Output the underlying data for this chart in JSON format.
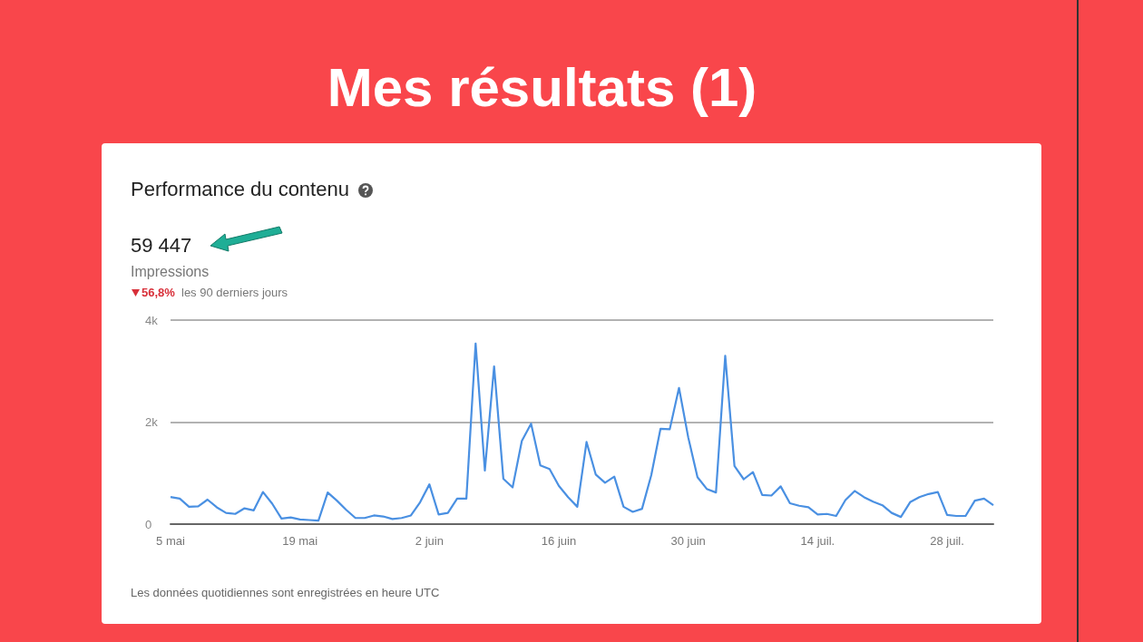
{
  "chart_data": {
    "type": "line",
    "title": "Mes résultats (1)",
    "subtitle": "Performance du contenu",
    "annotations": [
      "59 447",
      "Impressions",
      "56,8%",
      "les 90 derniers jours",
      "Les données quotidiennes sont enregistrées en heure UTC"
    ],
    "categories": [
      "5 mai",
      null,
      null,
      null,
      null,
      null,
      null,
      null,
      null,
      null,
      null,
      null,
      null,
      null,
      "19 mai",
      null,
      null,
      null,
      null,
      null,
      null,
      null,
      null,
      null,
      null,
      null,
      null,
      null,
      "2 juin",
      null,
      null,
      null,
      null,
      null,
      null,
      null,
      null,
      null,
      null,
      null,
      null,
      null,
      "16 juin",
      null,
      null,
      null,
      null,
      null,
      null,
      null,
      null,
      null,
      null,
      null,
      null,
      null,
      "30 juin",
      null,
      null,
      null,
      null,
      null,
      null,
      null,
      null,
      null,
      null,
      null,
      null,
      null,
      "14 juil.",
      null,
      null,
      null,
      null,
      null,
      null,
      null,
      null,
      null,
      null,
      null,
      null,
      null,
      "28 juil.",
      null,
      null,
      null,
      null,
      null
    ],
    "series": [
      {
        "color": "#4a90e2",
        "values": [
          530,
          500,
          340,
          350,
          480,
          330,
          220,
          200,
          310,
          270,
          630,
          400,
          110,
          130,
          90,
          80,
          70,
          620,
          460,
          280,
          120,
          120,
          170,
          150,
          100,
          120,
          170,
          430,
          780,
          190,
          220,
          500,
          500,
          3540,
          1050,
          3090,
          890,
          720,
          1630,
          1970,
          1150,
          1080,
          750,
          530,
          340,
          1610,
          970,
          810,
          930,
          340,
          240,
          300,
          960,
          1870,
          1860,
          2670,
          1700,
          920,
          690,
          620,
          3300,
          1140,
          880,
          1020,
          570,
          560,
          740,
          410,
          360,
          330,
          190,
          200,
          160,
          470,
          650,
          530,
          440,
          370,
          220,
          140,
          430,
          530,
          590,
          630,
          180,
          160,
          160,
          460,
          500,
          370
        ]
      }
    ],
    "ylim": [
      0,
      4000
    ],
    "yticks": [
      0,
      {
        "value": 2000,
        "label": "2k"
      },
      {
        "value": 4000,
        "label": "4k"
      }
    ],
    "grid": "y",
    "marker": "none",
    "line_style": "solid"
  }
}
